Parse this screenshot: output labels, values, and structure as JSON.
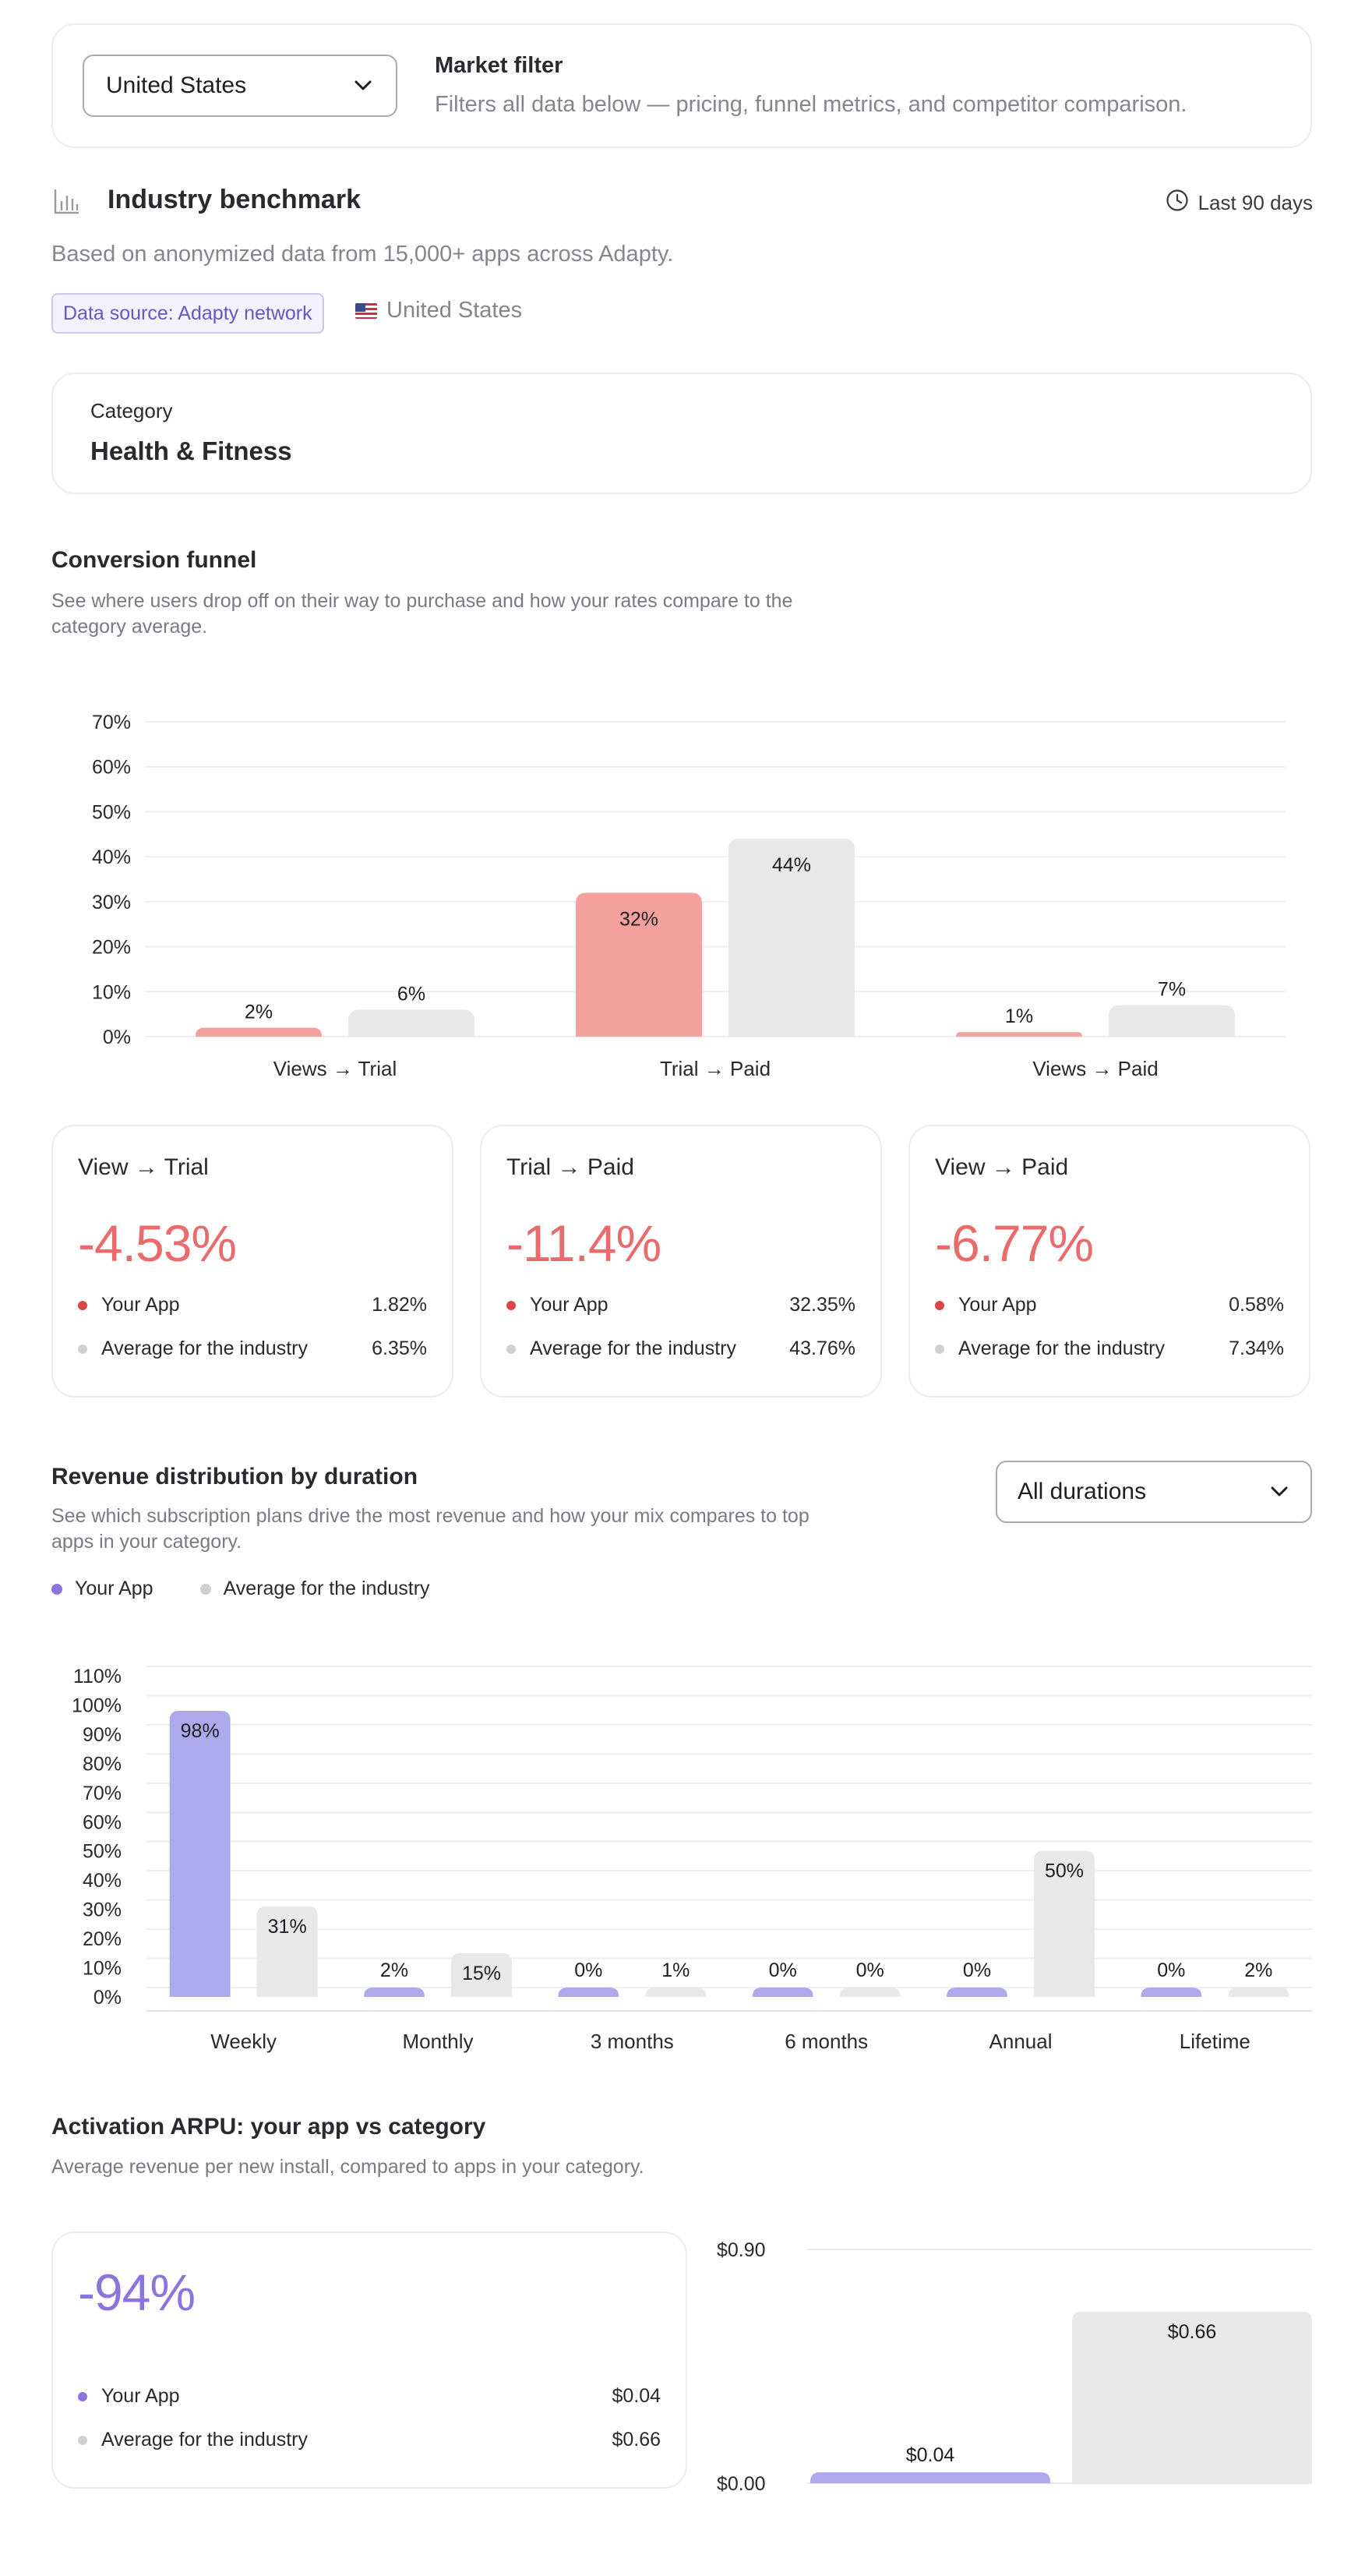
{
  "market_filter": {
    "selected": "United States",
    "title": "Market filter",
    "description": "Filters all data below — pricing, funnel metrics, and competitor comparison."
  },
  "benchmark": {
    "title": "Industry benchmark",
    "period": "Last 90 days",
    "description": "Based on anonymized data from 15,000+ apps across Adapty.",
    "source_badge": "Data source: Adapty network",
    "country": "United States"
  },
  "category": {
    "label": "Category",
    "value": "Health & Fitness"
  },
  "funnel": {
    "title": "Conversion funnel",
    "description": "See where users drop off on their way to purchase and how your rates compare to the category average."
  },
  "kpis": [
    {
      "title": "View → Trial",
      "delta": "-4.53%",
      "app_label": "Your App",
      "app_value": "1.82%",
      "industry_label": "Average for the industry",
      "industry_value": "6.35%"
    },
    {
      "title": "Trial → Paid",
      "delta": "-11.4%",
      "app_label": "Your App",
      "app_value": "32.35%",
      "industry_label": "Average for the industry",
      "industry_value": "43.76%"
    },
    {
      "title": "View → Paid",
      "delta": "-6.77%",
      "app_label": "Your App",
      "app_value": "0.58%",
      "industry_label": "Average for the industry",
      "industry_value": "7.34%"
    }
  ],
  "revenue": {
    "title": "Revenue distribution by duration",
    "description": "See which subscription plans drive the most revenue and how your mix compares to top apps in your category.",
    "duration_select": "All durations",
    "legend_app": "Your App",
    "legend_industry": "Average for the industry"
  },
  "arpu": {
    "title": "Activation ARPU: your app vs category",
    "description": "Average revenue per new install, compared to apps in your category.",
    "delta": "-94%",
    "app_label": "Your App",
    "app_value": "$0.04",
    "industry_label": "Average for the industry",
    "industry_value": "$0.66"
  },
  "colors": {
    "app_funnel": "#f4a19d",
    "industry": "#e8e8e8",
    "app_revenue": "#aea8ec",
    "negative": "#ea6b6b",
    "purple_text": "#8b74db",
    "app_dot_red": "#d94848",
    "app_dot_purple": "#8b74db",
    "industry_dot": "#cfcfd2"
  },
  "chart_data": [
    {
      "type": "bar",
      "categories": [
        "Views → Trial",
        "Trial → Paid",
        "Views → Paid"
      ],
      "series": [
        {
          "values": [
            2,
            32,
            1
          ],
          "labels": [
            "2%",
            "32%",
            "1%"
          ]
        },
        {
          "values": [
            6,
            44,
            7
          ],
          "labels": [
            "6%",
            "44%",
            "7%"
          ]
        }
      ],
      "y_ticks": [
        "0%",
        "10%",
        "20%",
        "30%",
        "40%",
        "50%",
        "60%",
        "70%"
      ],
      "ylim": [
        0,
        70
      ],
      "grid": true
    },
    {
      "type": "bar",
      "categories": [
        "Weekly",
        "Monthly",
        "3 months",
        "6 months",
        "Annual",
        "Lifetime"
      ],
      "series": [
        {
          "name": "Your App",
          "values": [
            98,
            2,
            0,
            0,
            0,
            0
          ],
          "labels": [
            "98%",
            "2%",
            "0%",
            "0%",
            "0%",
            "0%"
          ]
        },
        {
          "name": "Average for the industry",
          "values": [
            31,
            15,
            1,
            0,
            50,
            2
          ],
          "labels": [
            "31%",
            "15%",
            "1%",
            "0%",
            "50%",
            "2%"
          ]
        }
      ],
      "y_ticks": [
        "0%",
        "10%",
        "20%",
        "30%",
        "40%",
        "50%",
        "60%",
        "70%",
        "80%",
        "90%",
        "100%",
        "110%"
      ],
      "ylim": [
        0,
        110
      ],
      "grid": true
    },
    {
      "type": "bar",
      "categories": [
        "Your App",
        "Average for the industry"
      ],
      "values": [
        0.04,
        0.66
      ],
      "labels": [
        "$0.04",
        "$0.66"
      ],
      "y_ticks": [
        "$0.00",
        "$0.90"
      ],
      "ylim": [
        0,
        0.9
      ],
      "grid": true
    }
  ]
}
